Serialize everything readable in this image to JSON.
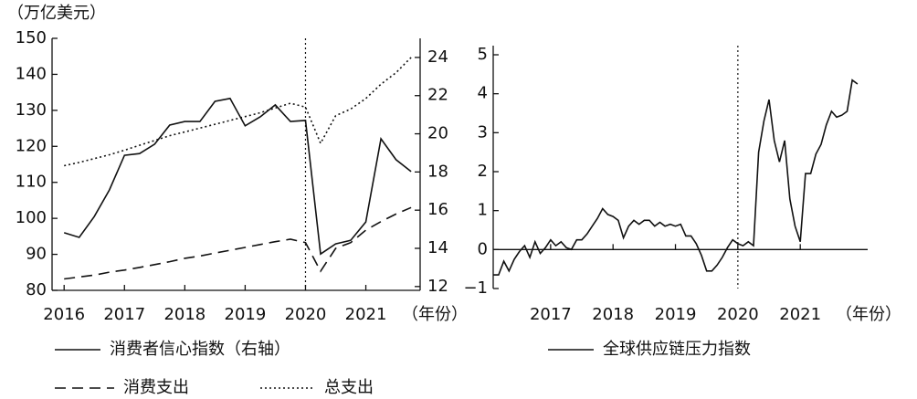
{
  "chart_data": [
    {
      "type": "line",
      "y_label": "（万亿美元）",
      "x_label": "（年份）",
      "xlim": [
        2015.8,
        2021.9
      ],
      "xticks": [
        2016,
        2017,
        2018,
        2019,
        2020,
        2021
      ],
      "ylim": [
        80,
        150
      ],
      "yticks": [
        80,
        90,
        100,
        110,
        120,
        130,
        140,
        150
      ],
      "y2lim": [
        11.8,
        25
      ],
      "y2ticks": [
        12,
        14,
        16,
        18,
        20,
        22,
        24
      ],
      "vline": 2020,
      "x": [
        2016,
        2016.25,
        2016.5,
        2016.75,
        2017,
        2017.25,
        2017.5,
        2017.75,
        2018,
        2018.25,
        2018.5,
        2018.75,
        2019,
        2019.25,
        2019.5,
        2019.75,
        2020,
        2020.25,
        2020.5,
        2020.75,
        2021,
        2021.25,
        2021.5,
        2021.75
      ],
      "series": [
        {
          "name": "消费者信心指数（右轴）",
          "color": "#111111",
          "style": "solid",
          "values": [
            96.0,
            94.7,
            100.5,
            107.9,
            117.5,
            118.0,
            120.6,
            125.9,
            126.9,
            126.9,
            132.5,
            133.3,
            125.7,
            128.2,
            131.5,
            126.9,
            127.2,
            90.1,
            92.9,
            93.9,
            99.0,
            122.1,
            116.3,
            113.0
          ]
        },
        {
          "name": "消费支出",
          "color": "#111111",
          "style": "dashed",
          "axis": "y2",
          "values": [
            12.4,
            12.5,
            12.6,
            12.75,
            12.86,
            13.0,
            13.15,
            13.3,
            13.48,
            13.6,
            13.75,
            13.9,
            14.05,
            14.2,
            14.35,
            14.48,
            14.3,
            12.8,
            14.0,
            14.3,
            14.95,
            15.4,
            15.8,
            16.14
          ]
        },
        {
          "name": "总支出",
          "color": "#111111",
          "style": "dotted",
          "axis": "y2",
          "values": [
            18.33,
            18.5,
            18.7,
            18.9,
            19.14,
            19.4,
            19.65,
            19.9,
            20.1,
            20.3,
            20.5,
            20.7,
            20.9,
            21.1,
            21.35,
            21.6,
            21.4,
            19.5,
            20.95,
            21.3,
            21.85,
            22.6,
            23.2,
            24.0
          ]
        }
      ]
    },
    {
      "type": "line",
      "x_label": "（年份）",
      "xlim": [
        2016.08,
        2022.08
      ],
      "xticks": [
        2017,
        2018,
        2019,
        2020,
        2021
      ],
      "ylim": [
        -1,
        5
      ],
      "yticks": [
        {
          "value": -1,
          "label": "−1"
        },
        0,
        1,
        2,
        3,
        4,
        5
      ],
      "vline": 2020,
      "x": [
        2016.083,
        2016.167,
        2016.25,
        2016.333,
        2016.417,
        2016.5,
        2016.583,
        2016.667,
        2016.75,
        2016.833,
        2016.917,
        2017.0,
        2017.083,
        2017.167,
        2017.25,
        2017.333,
        2017.417,
        2017.5,
        2017.583,
        2017.667,
        2017.75,
        2017.833,
        2017.917,
        2018.0,
        2018.083,
        2018.167,
        2018.25,
        2018.333,
        2018.417,
        2018.5,
        2018.583,
        2018.667,
        2018.75,
        2018.833,
        2018.917,
        2019.0,
        2019.083,
        2019.167,
        2019.25,
        2019.333,
        2019.417,
        2019.5,
        2019.583,
        2019.667,
        2019.75,
        2019.833,
        2019.917,
        2020.0,
        2020.083,
        2020.167,
        2020.25,
        2020.333,
        2020.417,
        2020.5,
        2020.583,
        2020.667,
        2020.75,
        2020.833,
        2020.917,
        2021.0,
        2021.083,
        2021.167,
        2021.25,
        2021.333,
        2021.417,
        2021.5,
        2021.583,
        2021.667,
        2021.75,
        2021.833,
        2021.917
      ],
      "series": [
        {
          "name": "全球供应链压力指数",
          "color": "#111111",
          "style": "solid",
          "values": [
            -0.65,
            -0.65,
            -0.3,
            -0.55,
            -0.25,
            -0.05,
            0.1,
            -0.2,
            0.2,
            -0.1,
            0.05,
            0.25,
            0.1,
            0.2,
            0.05,
            0.0,
            0.25,
            0.25,
            0.4,
            0.6,
            0.8,
            1.05,
            0.9,
            0.85,
            0.75,
            0.3,
            0.6,
            0.75,
            0.65,
            0.75,
            0.75,
            0.6,
            0.7,
            0.6,
            0.65,
            0.6,
            0.65,
            0.35,
            0.35,
            0.15,
            -0.15,
            -0.55,
            -0.55,
            -0.4,
            -0.2,
            0.05,
            0.25,
            0.15,
            0.1,
            0.2,
            0.1,
            2.5,
            3.3,
            3.85,
            2.8,
            2.25,
            2.8,
            1.3,
            0.6,
            0.2,
            1.95,
            1.95,
            2.45,
            2.7,
            3.2,
            3.55,
            3.4,
            3.45,
            3.55,
            4.35,
            4.25
          ]
        }
      ]
    }
  ]
}
